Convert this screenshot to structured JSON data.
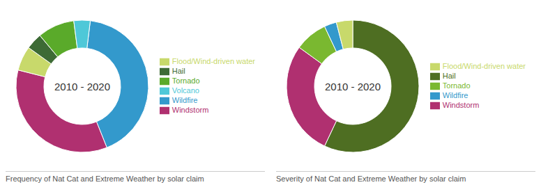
{
  "chart_data": [
    {
      "type": "pie",
      "title": "2010 - 2020",
      "subtitle": "Frequency of Nat Cat and Extreme Weather by solar claim",
      "categories": [
        "Wildfire",
        "Windstorm",
        "Flood/Wind-driven water",
        "Hail",
        "Tornado",
        "Volcano"
      ],
      "values": [
        42,
        35,
        6,
        4,
        9,
        4
      ],
      "colors": [
        "#3399cc",
        "#b03070",
        "#c8d96b",
        "#3d6b35",
        "#5aaa2a",
        "#4ec8d8"
      ],
      "legend": "right"
    },
    {
      "type": "pie",
      "title": "2010 - 2020",
      "subtitle": "Severity of Nat Cat and Extreme Weather by solar claim",
      "categories": [
        "Hail",
        "Windstorm",
        "Tornado",
        "Wildfire",
        "Flood/Wind-driven water"
      ],
      "values": [
        57,
        28,
        8,
        3,
        4
      ],
      "colors": [
        "#4e6e22",
        "#b03070",
        "#7ab830",
        "#3399cc",
        "#c8d96b"
      ],
      "legend": "right"
    }
  ]
}
